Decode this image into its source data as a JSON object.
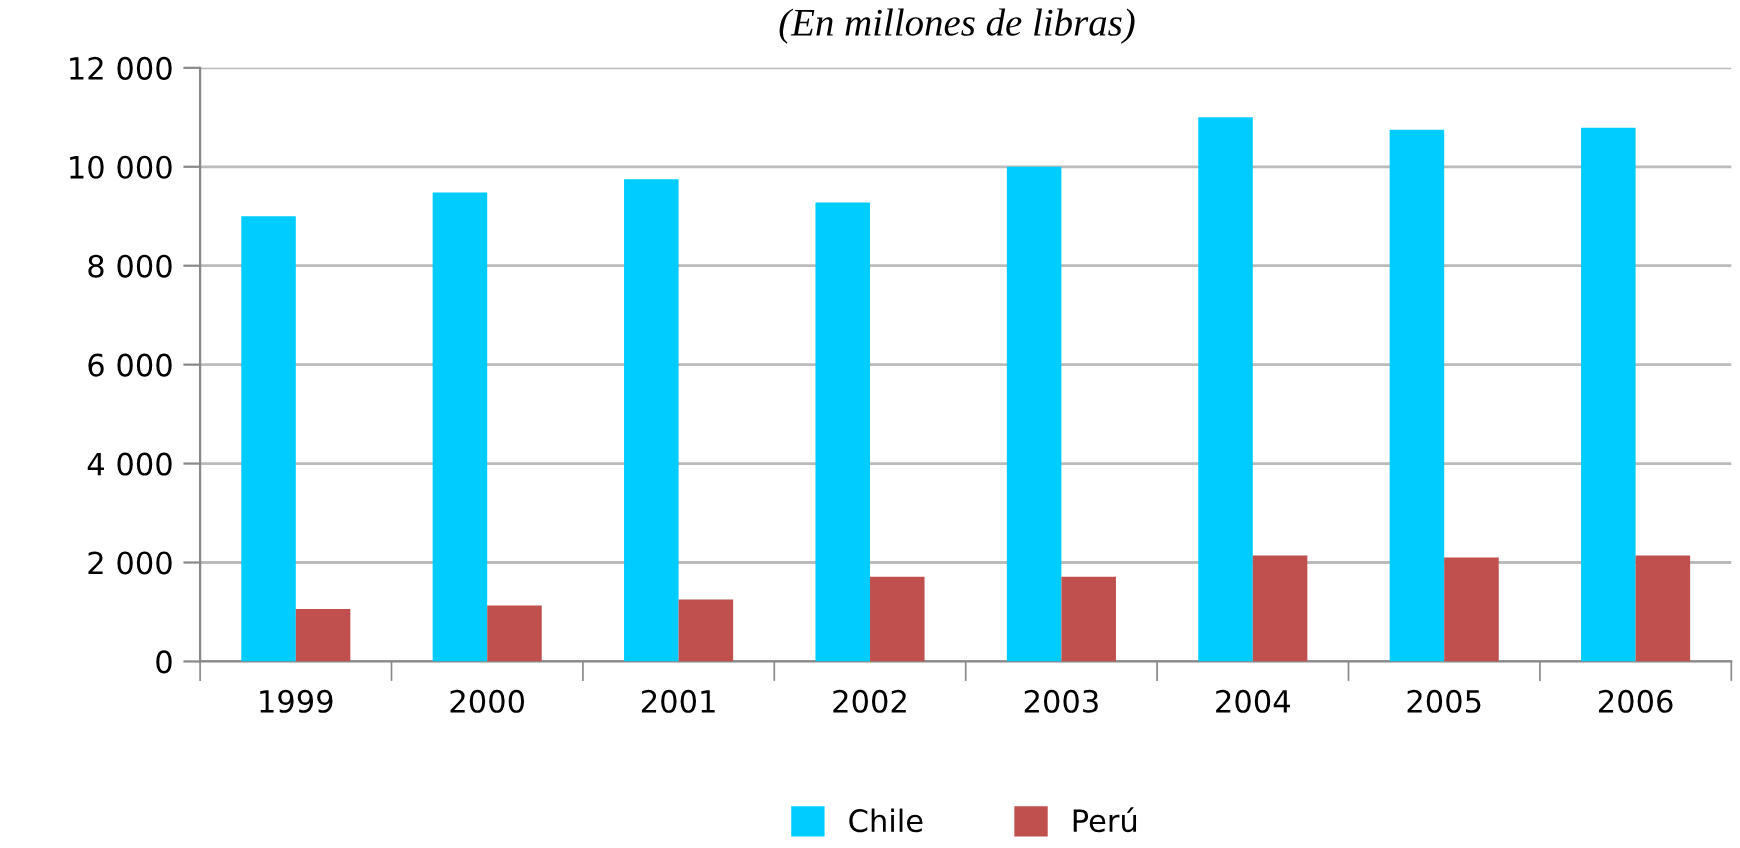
{
  "chart_data": {
    "type": "bar",
    "subtitle": "(En millones de libras)",
    "categories": [
      "1999",
      "2000",
      "2001",
      "2002",
      "2003",
      "2004",
      "2005",
      "2006"
    ],
    "series": [
      {
        "name": "Chile",
        "color": "#00ccff",
        "values": [
          9000,
          9480,
          9750,
          9280,
          10000,
          11000,
          10750,
          10790
        ]
      },
      {
        "name": "Perú",
        "color": "#c0504d",
        "values": [
          1060,
          1130,
          1250,
          1710,
          1710,
          2140,
          2100,
          2140
        ]
      }
    ],
    "ylim": [
      0,
      12000
    ],
    "yticks": [
      {
        "value": 0,
        "label": "0"
      },
      {
        "value": 2000,
        "label": "2 000"
      },
      {
        "value": 4000,
        "label": "4 000"
      },
      {
        "value": 6000,
        "label": "6 000"
      },
      {
        "value": 8000,
        "label": "8 000"
      },
      {
        "value": 10000,
        "label": "10 000"
      },
      {
        "value": 12000,
        "label": "12 000"
      }
    ],
    "grid": "y",
    "legend": "bottom"
  }
}
